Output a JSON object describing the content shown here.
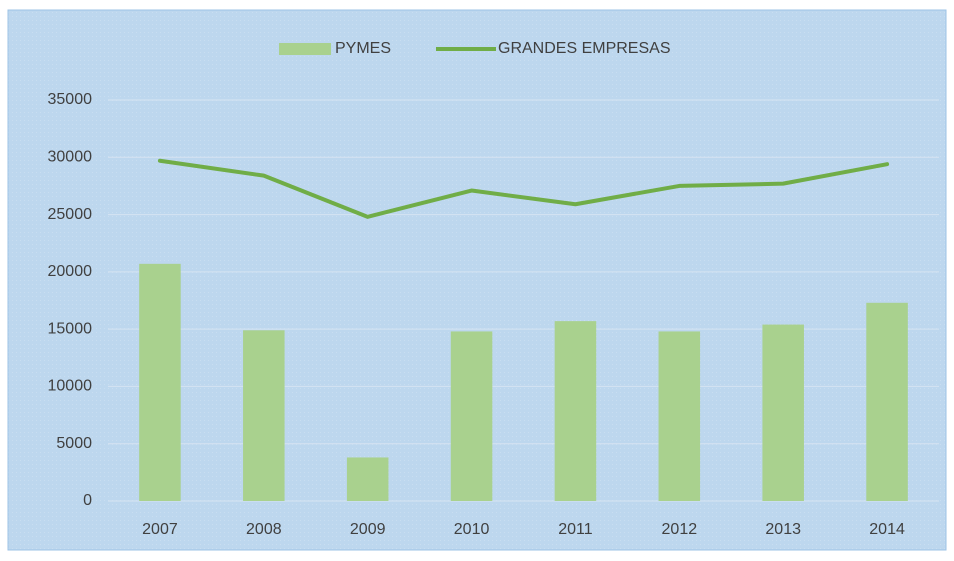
{
  "chart_data": {
    "type": "combo",
    "categories": [
      "2007",
      "2008",
      "2009",
      "2010",
      "2011",
      "2012",
      "2013",
      "2014"
    ],
    "series": [
      {
        "name": "PYMES",
        "type": "bar",
        "color": "#a9d18e",
        "values": [
          20700,
          14900,
          3800,
          14800,
          15700,
          14800,
          15400,
          17300
        ]
      },
      {
        "name": "GRANDES EMPRESAS",
        "type": "line",
        "color": "#70ad47",
        "values": [
          29700,
          28400,
          24800,
          27100,
          25900,
          27500,
          27700,
          29400
        ]
      }
    ],
    "ylim": [
      0,
      35000
    ],
    "yticks": [
      0,
      5000,
      10000,
      15000,
      20000,
      25000,
      30000,
      35000
    ],
    "grid": true,
    "legend": "top"
  }
}
